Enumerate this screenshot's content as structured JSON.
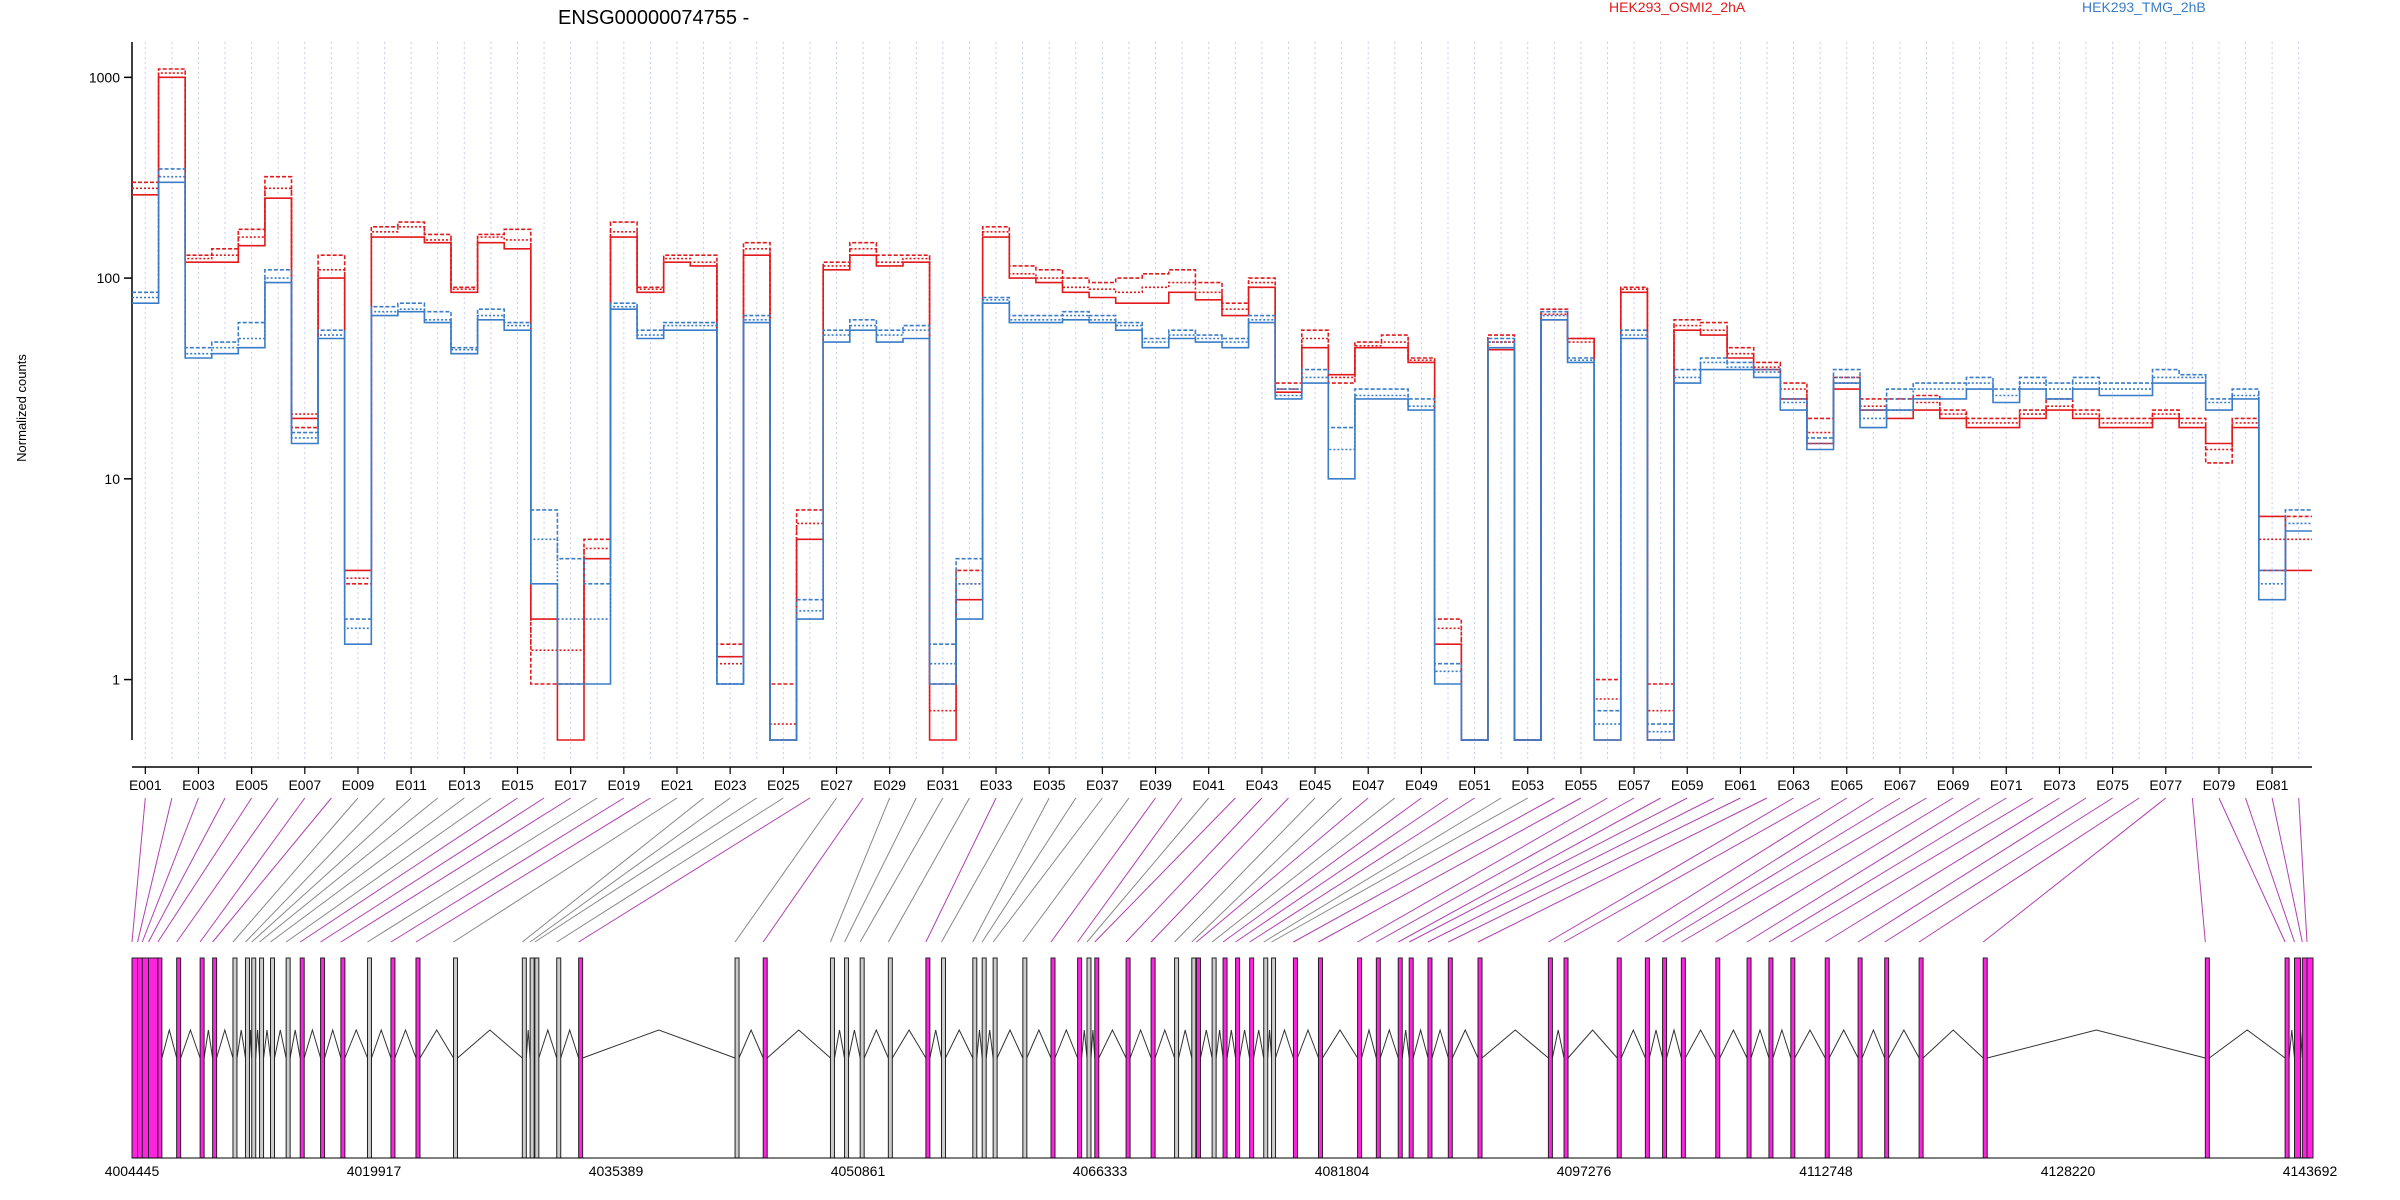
{
  "chart_data": {
    "type": "line",
    "title": "ENSG00000074755 -",
    "ylabel": "Normalized counts",
    "xlabel": "",
    "yscale": "log",
    "ylim": [
      0.5,
      1500
    ],
    "yticks": [
      1,
      10,
      100,
      1000
    ],
    "legend_position": "top",
    "grid": "vertical dotted lines at each exon",
    "exons": [
      "E001",
      "E002",
      "E003",
      "E004",
      "E005",
      "E006",
      "E007",
      "E008",
      "E009",
      "E010",
      "E011",
      "E012",
      "E013",
      "E014",
      "E015",
      "E016",
      "E017",
      "E018",
      "E019",
      "E020",
      "E021",
      "E022",
      "E023",
      "E024",
      "E025",
      "E026",
      "E027",
      "E028",
      "E029",
      "E030",
      "E031",
      "E032",
      "E033",
      "E034",
      "E035",
      "E036",
      "E037",
      "E038",
      "E039",
      "E040",
      "E041",
      "E042",
      "E043",
      "E044",
      "E045",
      "E046",
      "E047",
      "E048",
      "E049",
      "E050",
      "E051",
      "E052",
      "E053",
      "E054",
      "E055",
      "E056",
      "E057",
      "E058",
      "E059",
      "E060",
      "E061",
      "E062",
      "E063",
      "E064",
      "E065",
      "E066",
      "E067",
      "E068",
      "E069",
      "E070",
      "E071",
      "E072",
      "E073",
      "E074",
      "E075",
      "E076",
      "E077",
      "E078",
      "E079",
      "E080",
      "E081",
      "E082"
    ],
    "exon_tick_labels": [
      "E001",
      "E003",
      "E005",
      "E007",
      "E009",
      "E011",
      "E013",
      "E015",
      "E017",
      "E019",
      "E021",
      "E023",
      "E025",
      "E027",
      "E029",
      "E031",
      "E033",
      "E035",
      "E037",
      "E039",
      "E041",
      "E043",
      "E045",
      "E047",
      "E049",
      "E051",
      "E053",
      "E055",
      "E057",
      "E059",
      "E061",
      "E063",
      "E065",
      "E067",
      "E069",
      "E071",
      "E073",
      "E075",
      "E077",
      "E079",
      "E081"
    ],
    "series": [
      {
        "name": "HEK293_OSMI2_2hA",
        "group": "HEK293_OSMI2_2hA",
        "color": "#e31a1c",
        "values": [
          260,
          1000,
          120,
          120,
          145,
          250,
          20,
          100,
          3.5,
          160,
          160,
          150,
          85,
          150,
          140,
          2,
          0.5,
          4,
          160,
          85,
          120,
          115,
          1.3,
          130,
          0.5,
          5,
          110,
          130,
          115,
          120,
          0.5,
          2.5,
          160,
          100,
          95,
          85,
          80,
          75,
          75,
          85,
          78,
          65,
          90,
          27,
          45,
          33,
          45,
          45,
          38,
          1.5,
          0.5,
          44,
          0.5,
          62,
          50,
          0.5,
          85,
          0.5,
          55,
          52,
          40,
          35,
          25,
          15,
          28,
          22,
          20,
          22,
          20,
          18,
          18,
          20,
          22,
          20,
          18,
          18,
          20,
          18,
          15,
          18,
          6.5,
          3.5
        ]
      },
      {
        "name": "",
        "group": "HEK293_OSMI2_2hA",
        "color": "#e31a1c",
        "values": [
          300,
          1100,
          130,
          140,
          175,
          320,
          18,
          130,
          3,
          180,
          190,
          165,
          90,
          165,
          175,
          0.95,
          0.95,
          5,
          190,
          90,
          130,
          130,
          1.5,
          150,
          0.95,
          7,
          120,
          150,
          130,
          130,
          0.95,
          3.5,
          180,
          115,
          110,
          100,
          95,
          100,
          105,
          110,
          95,
          75,
          100,
          30,
          55,
          30,
          48,
          52,
          40,
          2,
          0.5,
          52,
          0.5,
          70,
          50,
          1,
          90,
          0.95,
          62,
          60,
          45,
          38,
          30,
          20,
          32,
          25,
          25,
          26,
          22,
          20,
          20,
          22,
          25,
          22,
          20,
          20,
          22,
          20,
          12,
          20,
          3.5,
          6.5
        ]
      },
      {
        "name": "",
        "group": "HEK293_OSMI2_2hA",
        "color": "#e31a1c",
        "values": [
          280,
          1050,
          125,
          130,
          160,
          280,
          21,
          110,
          3.2,
          170,
          180,
          155,
          88,
          160,
          155,
          1.4,
          1.4,
          4.5,
          170,
          88,
          125,
          120,
          1.2,
          140,
          0.6,
          6,
          115,
          140,
          120,
          125,
          0.7,
          3,
          170,
          105,
          100,
          90,
          88,
          85,
          90,
          95,
          85,
          70,
          95,
          28,
          50,
          32,
          46,
          48,
          39,
          1.8,
          0.5,
          48,
          0.5,
          66,
          48,
          0.8,
          88,
          0.7,
          58,
          55,
          42,
          36,
          28,
          17,
          30,
          23,
          22,
          24,
          21,
          19,
          19,
          21,
          23,
          21,
          19,
          19,
          21,
          19,
          14,
          19,
          5,
          5
        ]
      },
      {
        "name": "HEK293_TMG_2hB",
        "group": "HEK293_TMG_2hB",
        "color": "#3a7dc9",
        "values": [
          75,
          300,
          40,
          42,
          45,
          95,
          15,
          50,
          1.5,
          65,
          68,
          60,
          42,
          62,
          55,
          3,
          0.95,
          0.95,
          70,
          50,
          55,
          55,
          0.95,
          60,
          0.5,
          2,
          48,
          55,
          48,
          50,
          0.95,
          2,
          75,
          60,
          60,
          62,
          60,
          55,
          45,
          50,
          48,
          45,
          60,
          25,
          30,
          10,
          25,
          25,
          22,
          0.95,
          0.5,
          45,
          0.5,
          62,
          38,
          0.5,
          50,
          0.5,
          30,
          35,
          35,
          32,
          22,
          14,
          30,
          18,
          22,
          25,
          25,
          28,
          24,
          28,
          25,
          28,
          26,
          26,
          30,
          30,
          22,
          25,
          2.5,
          5.5
        ]
      },
      {
        "name": "",
        "group": "HEK293_TMG_2hB",
        "color": "#3a7dc9",
        "values": [
          85,
          350,
          45,
          48,
          60,
          110,
          17,
          55,
          2,
          72,
          75,
          68,
          45,
          70,
          60,
          7,
          4,
          3,
          75,
          55,
          60,
          60,
          0.95,
          65,
          0.5,
          2.5,
          55,
          62,
          55,
          58,
          1.5,
          4,
          80,
          65,
          65,
          68,
          65,
          60,
          50,
          55,
          52,
          50,
          65,
          28,
          35,
          18,
          28,
          28,
          25,
          1.2,
          0.5,
          50,
          0.5,
          68,
          40,
          0.7,
          55,
          0.6,
          35,
          40,
          38,
          35,
          25,
          16,
          35,
          22,
          28,
          30,
          30,
          32,
          28,
          32,
          30,
          32,
          30,
          30,
          35,
          33,
          25,
          28,
          3.5,
          7
        ]
      },
      {
        "name": "",
        "group": "HEK293_TMG_2hB",
        "color": "#3a7dc9",
        "values": [
          80,
          320,
          42,
          45,
          50,
          100,
          16,
          52,
          1.8,
          68,
          70,
          62,
          44,
          65,
          58,
          5,
          2,
          2,
          72,
          52,
          58,
          58,
          0.95,
          62,
          0.5,
          2.2,
          52,
          58,
          52,
          55,
          1.2,
          3,
          78,
          62,
          62,
          65,
          62,
          58,
          48,
          52,
          50,
          48,
          62,
          26,
          32,
          14,
          26,
          26,
          23,
          1.1,
          0.5,
          48,
          0.5,
          65,
          39,
          0.6,
          52,
          0.55,
          32,
          38,
          36,
          34,
          24,
          15,
          32,
          20,
          25,
          28,
          28,
          30,
          26,
          30,
          28,
          30,
          28,
          28,
          32,
          32,
          24,
          26,
          3,
          6
        ]
      }
    ],
    "genomic_axis": {
      "tick_labels": [
        "4004445",
        "4019917",
        "4035389",
        "4050861",
        "4066333",
        "4081804",
        "4097276",
        "4112748",
        "4128220",
        "4143692"
      ],
      "range": [
        4004445,
        4143692
      ]
    }
  },
  "legend": [
    {
      "label": "HEK293_OSMI2_2hA",
      "color": "#e31a1c"
    },
    {
      "label": "HEK293_TMG_2hB",
      "color": "#3a7dc9"
    }
  ]
}
